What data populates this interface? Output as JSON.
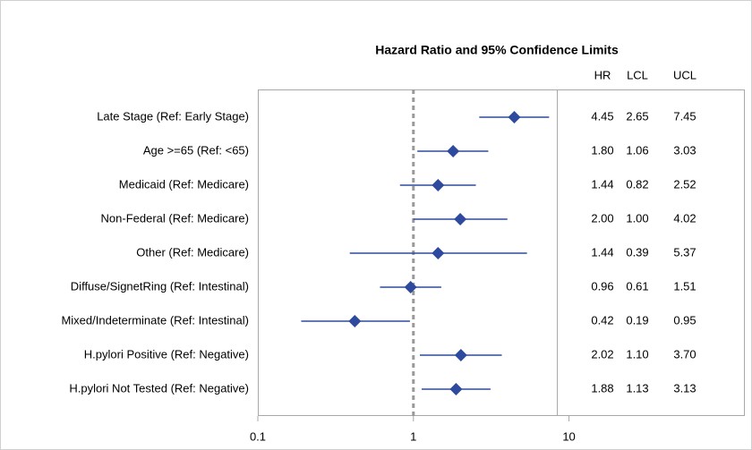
{
  "chart_data": {
    "type": "forest",
    "title": "Hazard Ratio and 95% Confidence Limits",
    "categories": [
      "Late Stage (Ref: Early Stage)",
      "Age >=65 (Ref: <65)",
      "Medicaid (Ref: Medicare)",
      "Non-Federal (Ref: Medicare)",
      "Other (Ref: Medicare)",
      "Diffuse/SignetRing  (Ref: Intestinal)",
      "Mixed/Indeterminate (Ref: Intestinal)",
      "H.pylori Positive (Ref: Negative)",
      "H.pylori Not Tested (Ref: Negative)"
    ],
    "series": [
      {
        "name": "HR",
        "color": "#2e4a9e",
        "values": [
          4.45,
          1.8,
          1.44,
          2.0,
          1.44,
          0.96,
          0.42,
          2.02,
          1.88
        ],
        "value_labels": [
          "4.45",
          "1.80",
          "1.44",
          "2.00",
          "1.44",
          "0.96",
          "0.42",
          "2.02",
          "1.88"
        ]
      },
      {
        "name": "LCL",
        "color": "#2e4a9e",
        "values": [
          2.65,
          1.06,
          0.82,
          1.0,
          0.39,
          0.61,
          0.19,
          1.1,
          1.13
        ],
        "value_labels": [
          "2.65",
          "1.06",
          "0.82",
          "1.00",
          "0.39",
          "0.61",
          "0.19",
          "1.10",
          "1.13"
        ]
      },
      {
        "name": "UCL",
        "color": "#2e4a9e",
        "values": [
          7.45,
          3.03,
          2.52,
          4.02,
          5.37,
          1.51,
          0.95,
          3.7,
          3.13
        ],
        "value_labels": [
          "7.45",
          "3.03",
          "2.52",
          "4.02",
          "5.37",
          "1.51",
          "0.95",
          "3.70",
          "3.13"
        ]
      }
    ],
    "log_scale": true,
    "xlim": [
      0.1,
      135
    ],
    "xticks": [
      0.1,
      1,
      10
    ],
    "reference_line": 1
  }
}
